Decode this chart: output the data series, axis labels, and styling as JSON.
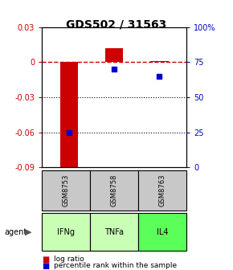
{
  "title": "GDS502 / 31563",
  "samples": [
    "GSM8753",
    "GSM8758",
    "GSM8763"
  ],
  "agents": [
    "IFNg",
    "TNFa",
    "IL4"
  ],
  "log_ratios": [
    -0.091,
    0.012,
    0.001
  ],
  "percentile_ranks": [
    25,
    70,
    65
  ],
  "bar_color": "#cc0000",
  "dot_color": "#0000cc",
  "ylim_left": [
    -0.09,
    0.03
  ],
  "ylim_right": [
    0,
    100
  ],
  "yticks_left": [
    0.03,
    0,
    -0.03,
    -0.06,
    -0.09
  ],
  "yticks_right": [
    100,
    75,
    50,
    25,
    0
  ],
  "ytick_labels_left": [
    "0.03",
    "0",
    "-0.03",
    "-0.06",
    "-0.09"
  ],
  "ytick_labels_right": [
    "100%",
    "75",
    "50",
    "25",
    "0"
  ],
  "sample_bg_color": "#c8c8c8",
  "agent_colors": [
    "#c8ffb4",
    "#c8ffb4",
    "#5aff5a"
  ],
  "zero_line_color": "#cc0000",
  "grid_color": "#000000",
  "legend_red_label": "log ratio",
  "legend_blue_label": "percentile rank within the sample",
  "bar_width": 0.4
}
